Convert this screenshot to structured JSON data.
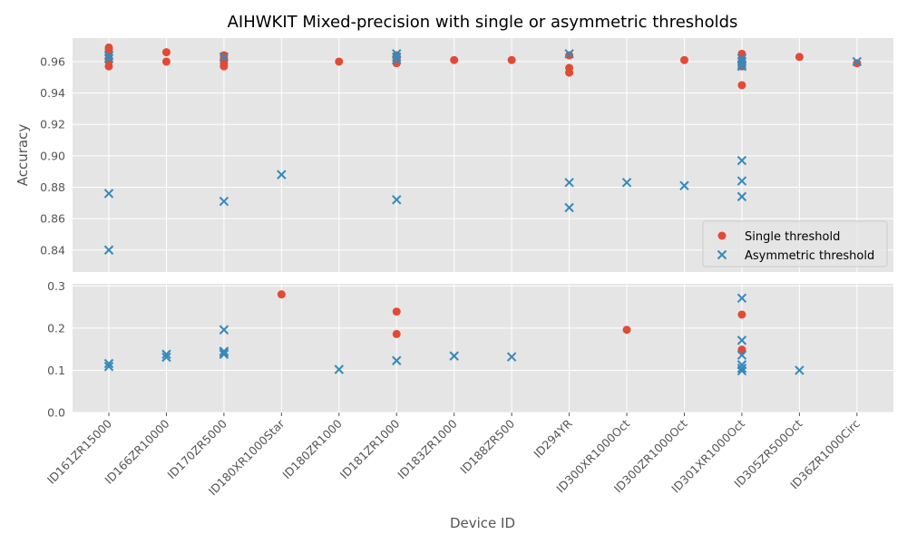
{
  "chart_data": {
    "type": "scatter",
    "title": "AIHWKIT Mixed-precision with single or asymmetric thresholds",
    "xlabel": "Device ID",
    "ylabel": "Accuracy",
    "categories": [
      "ID161ZR15000",
      "ID166ZR10000",
      "ID170ZR5000",
      "ID180XR1000Star",
      "ID180ZR1000",
      "ID181ZR1000",
      "ID183ZR1000",
      "ID188ZR500",
      "ID294YR",
      "ID300XR1000Oct",
      "ID300ZR1000Oct",
      "ID301XR1000Oct",
      "ID305ZR500Oct",
      "ID36ZR1000Circ"
    ],
    "legend": {
      "position": "lower-right",
      "entries": [
        "Single threshold",
        "Asymmetric threshold"
      ]
    },
    "colors": {
      "single": "#E24A33",
      "asymmetric": "#348ABD",
      "panel_bg": "#E5E5E5",
      "grid": "#FFFFFF"
    },
    "panels": [
      {
        "id": "top",
        "ylim": [
          0.826,
          0.975
        ],
        "yticks": [
          "0.84",
          "0.86",
          "0.88",
          "0.90",
          "0.92",
          "0.94",
          "0.96"
        ],
        "ytick_values": [
          0.84,
          0.86,
          0.88,
          0.9,
          0.92,
          0.94,
          0.96
        ],
        "series": [
          {
            "name": "Single threshold",
            "marker": "circle",
            "points": [
              [
                "ID161ZR15000",
                0.969
              ],
              [
                "ID161ZR15000",
                0.968
              ],
              [
                "ID161ZR15000",
                0.966
              ],
              [
                "ID161ZR15000",
                0.962
              ],
              [
                "ID161ZR15000",
                0.96
              ],
              [
                "ID161ZR15000",
                0.957
              ],
              [
                "ID166ZR10000",
                0.966
              ],
              [
                "ID166ZR10000",
                0.96
              ],
              [
                "ID170ZR5000",
                0.964
              ],
              [
                "ID170ZR5000",
                0.962
              ],
              [
                "ID170ZR5000",
                0.959
              ],
              [
                "ID170ZR5000",
                0.957
              ],
              [
                "ID180ZR1000",
                0.96
              ],
              [
                "ID181ZR1000",
                0.964
              ],
              [
                "ID181ZR1000",
                0.962
              ],
              [
                "ID181ZR1000",
                0.96
              ],
              [
                "ID181ZR1000",
                0.959
              ],
              [
                "ID183ZR1000",
                0.961
              ],
              [
                "ID188ZR500",
                0.961
              ],
              [
                "ID294YR",
                0.964
              ],
              [
                "ID294YR",
                0.956
              ],
              [
                "ID294YR",
                0.953
              ],
              [
                "ID300ZR1000Oct",
                0.961
              ],
              [
                "ID301XR1000Oct",
                0.965
              ],
              [
                "ID301XR1000Oct",
                0.962
              ],
              [
                "ID301XR1000Oct",
                0.959
              ],
              [
                "ID301XR1000Oct",
                0.957
              ],
              [
                "ID301XR1000Oct",
                0.945
              ],
              [
                "ID305ZR500Oct",
                0.963
              ],
              [
                "ID36ZR1000Circ",
                0.959
              ]
            ]
          },
          {
            "name": "Asymmetric threshold",
            "marker": "x",
            "points": [
              [
                "ID161ZR15000",
                0.964
              ],
              [
                "ID161ZR15000",
                0.962
              ],
              [
                "ID161ZR15000",
                0.876
              ],
              [
                "ID161ZR15000",
                0.84
              ],
              [
                "ID170ZR5000",
                0.963
              ],
              [
                "ID170ZR5000",
                0.871
              ],
              [
                "ID180XR1000Star",
                0.888
              ],
              [
                "ID181ZR1000",
                0.965
              ],
              [
                "ID181ZR1000",
                0.963
              ],
              [
                "ID181ZR1000",
                0.961
              ],
              [
                "ID181ZR1000",
                0.872
              ],
              [
                "ID294YR",
                0.965
              ],
              [
                "ID294YR",
                0.883
              ],
              [
                "ID294YR",
                0.867
              ],
              [
                "ID300XR1000Oct",
                0.883
              ],
              [
                "ID300ZR1000Oct",
                0.881
              ],
              [
                "ID301XR1000Oct",
                0.962
              ],
              [
                "ID301XR1000Oct",
                0.96
              ],
              [
                "ID301XR1000Oct",
                0.958
              ],
              [
                "ID301XR1000Oct",
                0.957
              ],
              [
                "ID301XR1000Oct",
                0.897
              ],
              [
                "ID301XR1000Oct",
                0.884
              ],
              [
                "ID301XR1000Oct",
                0.874
              ],
              [
                "ID36ZR1000Circ",
                0.96
              ]
            ]
          }
        ]
      },
      {
        "id": "bottom",
        "ylim": [
          0.0,
          0.305
        ],
        "yticks": [
          "0.0",
          "0.1",
          "0.2",
          "0.3"
        ],
        "ytick_values": [
          0.0,
          0.1,
          0.2,
          0.3
        ],
        "series": [
          {
            "name": "Single threshold",
            "marker": "circle",
            "points": [
              [
                "ID180XR1000Star",
                0.28
              ],
              [
                "ID181ZR1000",
                0.239
              ],
              [
                "ID181ZR1000",
                0.186
              ],
              [
                "ID300XR1000Oct",
                0.196
              ],
              [
                "ID301XR1000Oct",
                0.232
              ],
              [
                "ID301XR1000Oct",
                0.149
              ],
              [
                "ID301XR1000Oct",
                0.146
              ]
            ]
          },
          {
            "name": "Asymmetric threshold",
            "marker": "x",
            "points": [
              [
                "ID161ZR15000",
                0.116
              ],
              [
                "ID161ZR15000",
                0.109
              ],
              [
                "ID166ZR10000",
                0.138
              ],
              [
                "ID166ZR10000",
                0.131
              ],
              [
                "ID170ZR5000",
                0.196
              ],
              [
                "ID170ZR5000",
                0.145
              ],
              [
                "ID170ZR5000",
                0.142
              ],
              [
                "ID170ZR5000",
                0.138
              ],
              [
                "ID180ZR1000",
                0.102
              ],
              [
                "ID181ZR1000",
                0.123
              ],
              [
                "ID183ZR1000",
                0.134
              ],
              [
                "ID188ZR500",
                0.132
              ],
              [
                "ID301XR1000Oct",
                0.271
              ],
              [
                "ID301XR1000Oct",
                0.171
              ],
              [
                "ID301XR1000Oct",
                0.136
              ],
              [
                "ID301XR1000Oct",
                0.113
              ],
              [
                "ID301XR1000Oct",
                0.105
              ],
              [
                "ID301XR1000Oct",
                0.099
              ],
              [
                "ID305ZR500Oct",
                0.1
              ]
            ]
          }
        ]
      }
    ]
  }
}
